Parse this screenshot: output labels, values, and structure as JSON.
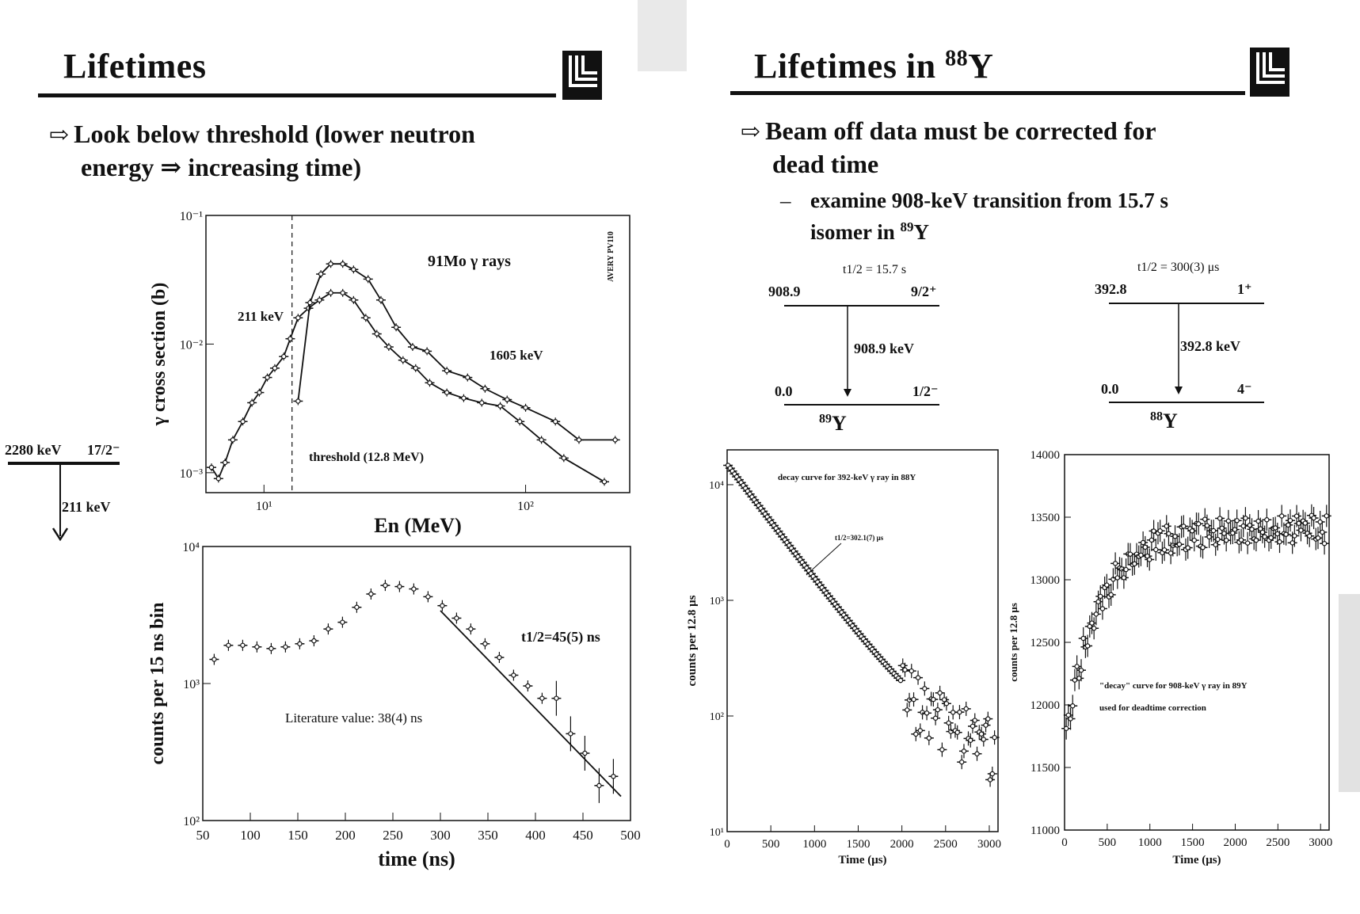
{
  "left_slide": {
    "title": "Lifetimes",
    "bullet_line1": "Look below threshold (lower neutron",
    "bullet_line2": "energy ⇒ increasing time)",
    "level": {
      "energy": "2280 keV",
      "spin": "17/2⁻",
      "transition": "211 keV"
    }
  },
  "right_slide": {
    "title_main": "Lifetimes in ",
    "title_mass": "88",
    "title_elem": "Y",
    "bullet_line1": "Beam off data must be corrected for",
    "bullet_line2": "dead time",
    "sub_dash": "–",
    "sub_line1": "examine 908-keV transition from 15.7 s",
    "sub_line2_pre": "isomer in ",
    "sub_line2_mass": "89",
    "sub_line2_elem": "Y",
    "scheme89": {
      "half_life": "t1/2 = 15.7 s",
      "upper_energy": "908.9",
      "upper_spin": "9/2⁺",
      "transition": "908.9 keV",
      "lower_energy": "0.0",
      "lower_spin": "1/2⁻",
      "nucleus_mass": "89",
      "nucleus_elem": "Y"
    },
    "scheme88": {
      "half_life": "t1/2 = 300(3) μs",
      "upper_energy": "392.8",
      "upper_spin": "1⁺",
      "transition": "392.8 keV",
      "lower_energy": "0.0",
      "lower_spin": "4⁻",
      "nucleus_mass": "88",
      "nucleus_elem": "Y"
    }
  },
  "chart_data": [
    {
      "type": "line",
      "title": "91Mo γ rays",
      "xlabel": "En (MeV)",
      "ylabel": "γ cross section (b)",
      "xscale": "log",
      "yscale": "log",
      "xlim": [
        6,
        250
      ],
      "ylim": [
        0.0007,
        0.1
      ],
      "x_ticks": [
        "10¹",
        "10²"
      ],
      "y_ticks": [
        "10⁻¹",
        "10⁻²",
        "10⁻³"
      ],
      "annotations": [
        "211 keV",
        "1605 keV",
        "threshold (12.8 MeV)",
        "AVERY PV110"
      ],
      "threshold_x": 12.8,
      "series": [
        {
          "name": "211 keV",
          "x": [
            6.3,
            6.7,
            7.1,
            7.6,
            8.3,
            9.0,
            9.6,
            10.3,
            11.0,
            11.9,
            12.6,
            13.5,
            14.8,
            16.3,
            18.0,
            20.0,
            22.0,
            24.5,
            27.0,
            30.0,
            34.0,
            38.0,
            43.0,
            50.0,
            58.0,
            68.0,
            80.0,
            95.0,
            115.0,
            140.0,
            200.0
          ],
          "y": [
            0.0011,
            0.0009,
            0.0012,
            0.0018,
            0.0025,
            0.0035,
            0.0042,
            0.0055,
            0.0065,
            0.008,
            0.011,
            0.016,
            0.019,
            0.022,
            0.025,
            0.025,
            0.022,
            0.016,
            0.012,
            0.0095,
            0.0075,
            0.0065,
            0.005,
            0.0042,
            0.0038,
            0.0035,
            0.0033,
            0.0025,
            0.0018,
            0.0013,
            0.00085
          ]
        },
        {
          "name": "1605 keV",
          "x": [
            13.5,
            15.0,
            16.5,
            18.0,
            20.0,
            22.0,
            25.0,
            28.0,
            32.0,
            37.0,
            42.0,
            50.0,
            60.0,
            70.0,
            85.0,
            100.0,
            130.0,
            160.0,
            220.0
          ],
          "y": [
            0.0036,
            0.021,
            0.035,
            0.042,
            0.042,
            0.038,
            0.032,
            0.022,
            0.0135,
            0.0095,
            0.0088,
            0.0062,
            0.0055,
            0.0045,
            0.0037,
            0.0032,
            0.0025,
            0.0018,
            0.0018
          ]
        }
      ]
    },
    {
      "type": "scatter",
      "xlabel": "time (ns)",
      "ylabel": "counts per 15 ns bin",
      "yscale": "log",
      "xlim": [
        50,
        500
      ],
      "ylim": [
        100,
        10000
      ],
      "x_ticks": [
        50,
        100,
        150,
        200,
        250,
        300,
        350,
        400,
        450,
        500
      ],
      "y_ticks": [
        "10⁴",
        "10³",
        "10²"
      ],
      "annotations": [
        "t1/2=45(5) ns",
        "Literature value: 38(4) ns"
      ],
      "x": [
        62,
        77,
        92,
        107,
        122,
        137,
        152,
        167,
        182,
        197,
        212,
        227,
        242,
        257,
        272,
        287,
        302,
        317,
        332,
        347,
        362,
        377,
        392,
        407,
        422,
        437,
        452,
        467,
        482
      ],
      "y": [
        1500,
        1900,
        1900,
        1850,
        1800,
        1850,
        1950,
        2050,
        2500,
        2800,
        3600,
        4500,
        5200,
        5100,
        4900,
        4300,
        3700,
        3000,
        2500,
        1950,
        1550,
        1150,
        960,
        780,
        780,
        430,
        310,
        180,
        210
      ],
      "fit_line": {
        "x": [
          300,
          490
        ],
        "y": [
          3400,
          150
        ]
      }
    },
    {
      "type": "scatter",
      "title": "decay curve for 392-keV γ ray in 88Y",
      "xlabel": "Time (μs)",
      "ylabel": "counts per 12.8 μs",
      "yscale": "log",
      "xlim": [
        0,
        3100
      ],
      "ylim": [
        10,
        20000
      ],
      "x_ticks": [
        0,
        500,
        1000,
        1500,
        2000,
        2500,
        3000
      ],
      "y_ticks": [
        "10⁴",
        "10³",
        "10²",
        "10¹"
      ],
      "annotations": [
        "t1/2=302.1(7) μs"
      ],
      "decay": {
        "y0": 15000,
        "half_life_us": 302.1,
        "background": 45
      }
    },
    {
      "type": "scatter",
      "title": "\"decay\" curve for 908-keV γ ray in 89Y",
      "note": "used for deadtime correction",
      "xlabel": "Time (μs)",
      "ylabel": "counts per 12.8 μs",
      "xlim": [
        0,
        3100
      ],
      "ylim": [
        11000,
        14000
      ],
      "x_ticks": [
        0,
        500,
        1000,
        1500,
        2000,
        2500,
        3000
      ],
      "y_ticks": [
        14000,
        13500,
        13000,
        12500,
        12000,
        11500,
        11000
      ],
      "trend": {
        "start": 11700,
        "plateau": 13400,
        "tau_us": 400
      }
    }
  ]
}
